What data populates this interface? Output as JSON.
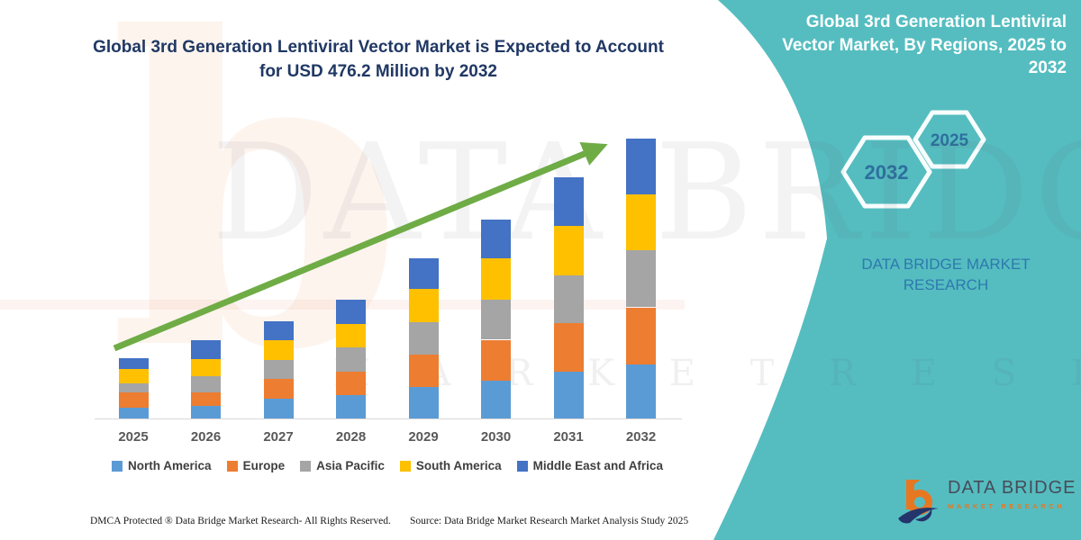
{
  "page": {
    "background": "#FFFFFF",
    "accent_teal": "#55BDC0",
    "title_navy": "#203864"
  },
  "header": {
    "title": "Global 3rd Generation Lentiviral Vector Market is Expected to Account for USD 476.2 Million by 2032"
  },
  "sidebar": {
    "title": "Global 3rd Generation Lentiviral Vector Market, By Regions, 2025 to 2032",
    "hexagons": [
      {
        "label": "2032"
      },
      {
        "label": "2025"
      }
    ],
    "brand": "DATA BRIDGE MARKET RESEARCH"
  },
  "watermark": {
    "glyph": "b",
    "big": "DATA BRIDGE",
    "spaced": "M A R K E T  R E S E A R C H"
  },
  "chart_data": {
    "type": "bar",
    "stacked": true,
    "title": "Global 3rd Generation Lentiviral Vector Market is Expected to Account for USD 476.2 Million by 2032",
    "unit": "USD Million",
    "categories": [
      "2025",
      "2026",
      "2027",
      "2028",
      "2029",
      "2030",
      "2031",
      "2032"
    ],
    "series": [
      {
        "name": "North America",
        "color": "#5B9BD5",
        "values": [
          19,
          22,
          33,
          40,
          53,
          65,
          79,
          92
        ]
      },
      {
        "name": "Europe",
        "color": "#ED7D31",
        "values": [
          25,
          23,
          34,
          40,
          56,
          69,
          83,
          97
        ]
      },
      {
        "name": "Asia Pacific",
        "color": "#A5A5A5",
        "values": [
          16,
          27,
          33,
          41,
          55,
          68,
          82,
          97
        ]
      },
      {
        "name": "South America",
        "color": "#FFC000",
        "values": [
          24,
          29,
          33,
          40,
          56,
          70,
          83,
          95
        ]
      },
      {
        "name": "Middle East and Africa",
        "color": "#4472C4",
        "values": [
          19,
          32,
          33,
          41,
          53,
          67,
          83,
          95.2
        ]
      }
    ],
    "totals": [
      103,
      133,
      166,
      202,
      273,
      339,
      410,
      476.2
    ],
    "ylim": [
      0,
      500
    ],
    "grid": false,
    "legend_position": "bottom",
    "annotations": {
      "headline_total_2032": 476.2,
      "trend_arrow": "up-right",
      "arrow_color": "#6FAC46"
    }
  },
  "footer": {
    "dmca": "DMCA Protected ® Data Bridge Market Research-  All Rights Reserved.",
    "source": "Source: Data Bridge Market Research  Market Analysis Study 2025",
    "logo": {
      "name": "DATA BRIDGE",
      "subname": "MARKET RESEARCH"
    }
  }
}
